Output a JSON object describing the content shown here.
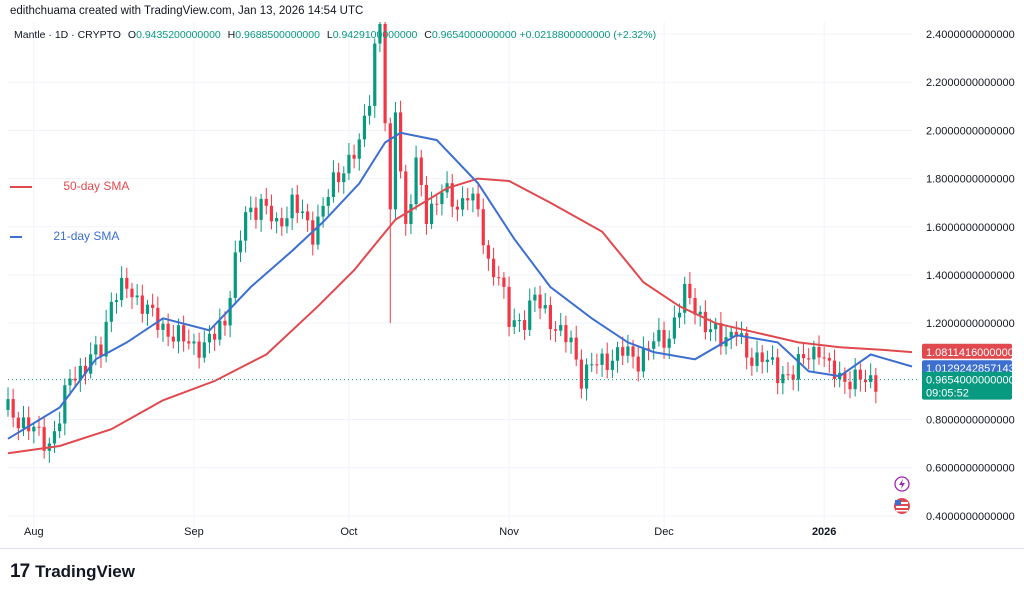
{
  "header": {
    "credit": "edithchuama created with TradingView.com, Jan 13, 2026 14:54 UTC"
  },
  "legend": {
    "symbol": "Mantle · 1D · CRYPTO",
    "open_label": "O",
    "open": "0.9435200000000",
    "high_label": "H",
    "high": "0.9688500000000",
    "low_label": "L",
    "low": "0.9429100000000",
    "close_label": "C",
    "close": "0.9654000000000",
    "change": "+0.0218800000000 (+2.32%)"
  },
  "overlays": {
    "sma50_label": "50-day SMA",
    "sma21_label": "21-day SMA"
  },
  "colors": {
    "up": "#089981",
    "down": "#f23645",
    "sma50": "#e04a4f",
    "sma21": "#3c6fd0",
    "grid": "#f0f3fa",
    "axis_text": "#131722"
  },
  "price_tags": {
    "sma50": "1.0811416000000",
    "sma21": "1.0129242857143",
    "last": "0.9654000000000",
    "countdown": "09:05:52"
  },
  "footer": {
    "brand": "TradingView",
    "logo": "17"
  },
  "chart_data": {
    "type": "candlestick",
    "title": "Mantle · 1D · CRYPTO",
    "ylim": [
      0.3,
      2.45
    ],
    "y_ticks": [
      "2.4000000000000",
      "2.2000000000000",
      "2.0000000000000",
      "1.8000000000000",
      "1.6000000000000",
      "1.4000000000000",
      "1.2000000000000",
      "0.8000000000000",
      "0.6000000000000",
      "0.4000000000000"
    ],
    "y_tick_values": [
      2.4,
      2.2,
      2.0,
      1.8,
      1.6,
      1.4,
      1.2,
      0.8,
      0.6,
      0.4
    ],
    "x_labels": [
      "Aug",
      "Sep",
      "Oct",
      "Nov",
      "Dec",
      "2026"
    ],
    "x_label_days": [
      0,
      31,
      61,
      92,
      122,
      153
    ],
    "start_day_offset": -5,
    "series": [
      {
        "name": "50-day SMA",
        "color": "#e04a4f",
        "points": [
          [
            -5,
            0.66
          ],
          [
            5,
            0.69
          ],
          [
            15,
            0.76
          ],
          [
            25,
            0.88
          ],
          [
            35,
            0.96
          ],
          [
            45,
            1.07
          ],
          [
            55,
            1.27
          ],
          [
            62,
            1.42
          ],
          [
            70,
            1.63
          ],
          [
            80,
            1.76
          ],
          [
            86,
            1.8
          ],
          [
            92,
            1.79
          ],
          [
            100,
            1.7
          ],
          [
            110,
            1.58
          ],
          [
            118,
            1.37
          ],
          [
            125,
            1.27
          ],
          [
            132,
            1.2
          ],
          [
            140,
            1.16
          ],
          [
            148,
            1.12
          ],
          [
            156,
            1.1
          ],
          [
            164,
            1.09
          ],
          [
            170,
            1.08
          ]
        ]
      },
      {
        "name": "21-day SMA",
        "color": "#3c6fd0",
        "points": [
          [
            -5,
            0.72
          ],
          [
            5,
            0.85
          ],
          [
            12,
            1.05
          ],
          [
            18,
            1.12
          ],
          [
            25,
            1.22
          ],
          [
            34,
            1.17
          ],
          [
            42,
            1.35
          ],
          [
            50,
            1.5
          ],
          [
            56,
            1.62
          ],
          [
            63,
            1.78
          ],
          [
            68,
            1.95
          ],
          [
            71,
            1.99
          ],
          [
            78,
            1.96
          ],
          [
            86,
            1.78
          ],
          [
            93,
            1.55
          ],
          [
            100,
            1.35
          ],
          [
            108,
            1.22
          ],
          [
            115,
            1.12
          ],
          [
            120,
            1.08
          ],
          [
            128,
            1.05
          ],
          [
            136,
            1.15
          ],
          [
            144,
            1.12
          ],
          [
            150,
            1.0
          ],
          [
            156,
            0.98
          ],
          [
            162,
            1.07
          ],
          [
            170,
            1.02
          ]
        ]
      },
      {
        "name": "price",
        "color": "#089981",
        "points": [
          [
            -5,
            0.84
          ],
          [
            0,
            0.75
          ],
          [
            3,
            0.7
          ],
          [
            5,
            0.8
          ],
          [
            7,
            0.98
          ],
          [
            10,
            1.02
          ],
          [
            13,
            1.1
          ],
          [
            15,
            1.3
          ],
          [
            18,
            1.35
          ],
          [
            21,
            1.28
          ],
          [
            24,
            1.2
          ],
          [
            27,
            1.15
          ],
          [
            30,
            1.12
          ],
          [
            33,
            1.1
          ],
          [
            35,
            1.15
          ],
          [
            37,
            1.22
          ],
          [
            39,
            1.45
          ],
          [
            41,
            1.65
          ],
          [
            44,
            1.7
          ],
          [
            47,
            1.6
          ],
          [
            50,
            1.7
          ],
          [
            54,
            1.58
          ],
          [
            58,
            1.78
          ],
          [
            60,
            1.85
          ],
          [
            63,
            1.93
          ],
          [
            65,
            2.15
          ],
          [
            66,
            2.35
          ],
          [
            67,
            2.45
          ],
          [
            69,
            1.62
          ],
          [
            70,
            2.1
          ],
          [
            72,
            1.6
          ],
          [
            74,
            1.85
          ],
          [
            76,
            1.65
          ],
          [
            79,
            1.75
          ],
          [
            82,
            1.68
          ],
          [
            84,
            1.75
          ],
          [
            86,
            1.65
          ],
          [
            88,
            1.45
          ],
          [
            90,
            1.4
          ],
          [
            92,
            1.2
          ],
          [
            95,
            1.22
          ],
          [
            97,
            1.3
          ],
          [
            99,
            1.25
          ],
          [
            102,
            1.15
          ],
          [
            104,
            1.12
          ],
          [
            106,
            0.98
          ],
          [
            108,
            1.02
          ],
          [
            111,
            1.05
          ],
          [
            114,
            1.08
          ],
          [
            117,
            1.05
          ],
          [
            120,
            1.12
          ],
          [
            123,
            1.15
          ],
          [
            126,
            1.32
          ],
          [
            128,
            1.28
          ],
          [
            130,
            1.18
          ],
          [
            133,
            1.14
          ],
          [
            136,
            1.17
          ],
          [
            138,
            1.05
          ],
          [
            141,
            1.07
          ],
          [
            144,
            0.98
          ],
          [
            147,
            1.0
          ],
          [
            150,
            1.07
          ],
          [
            152,
            1.1
          ],
          [
            154,
            1.0
          ],
          [
            157,
            0.97
          ],
          [
            160,
            0.96
          ],
          [
            163,
            0.9654
          ]
        ]
      }
    ]
  }
}
